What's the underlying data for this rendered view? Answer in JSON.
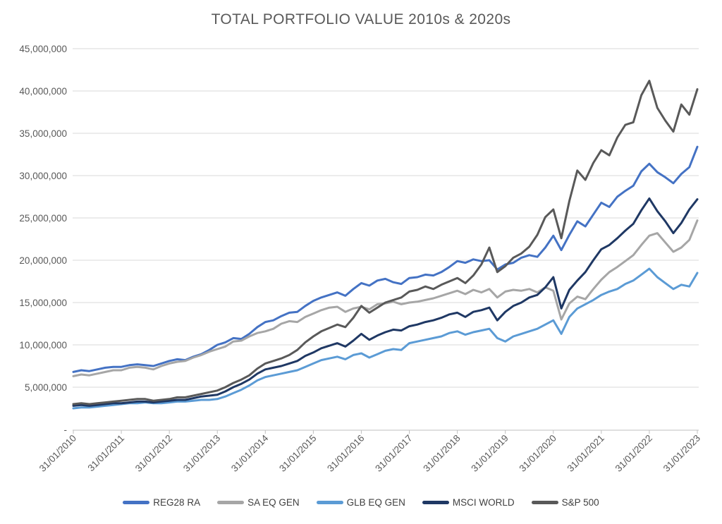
{
  "chart_data": {
    "type": "line",
    "title": "TOTAL PORTFOLIO VALUE 2010s & 2020s",
    "values_unit": "millions",
    "unit_multiplier": 1000000,
    "x_sampling": "6 points per year (bimonthly), Jan 2010 through Jan 2023",
    "x_tick_labels": [
      "31/01/2010",
      "31/01/2011",
      "31/01/2012",
      "31/01/2013",
      "31/01/2014",
      "31/01/2015",
      "31/01/2016",
      "31/01/2017",
      "31/01/2018",
      "31/01/2019",
      "31/01/2020",
      "31/01/2021",
      "31/01/2022",
      "31/01/2023"
    ],
    "y_ticks": [
      0,
      5,
      10,
      15,
      20,
      25,
      30,
      35,
      40,
      45
    ],
    "y_tick_labels": [
      "-",
      "5,000,000",
      "10,000,000",
      "15,000,000",
      "20,000,000",
      "25,000,000",
      "30,000,000",
      "35,000,000",
      "40,000,000",
      "45,000,000"
    ],
    "ylim": [
      0,
      45
    ],
    "grid": "horizontal",
    "legend_position": "bottom",
    "colors": {
      "grid_line": "#d9d9d9",
      "axis_line": "#bfbfbf",
      "axis_text": "#595959",
      "legend_text": "#404040"
    },
    "series": [
      {
        "name": "REG28 RA",
        "color": "#4472c4",
        "values": [
          6.8,
          7.0,
          6.9,
          7.1,
          7.3,
          7.4,
          7.4,
          7.6,
          7.7,
          7.6,
          7.5,
          7.8,
          8.1,
          8.3,
          8.2,
          8.6,
          8.9,
          9.4,
          10.0,
          10.3,
          10.8,
          10.7,
          11.3,
          12.1,
          12.7,
          12.9,
          13.4,
          13.8,
          13.9,
          14.6,
          15.2,
          15.6,
          15.9,
          16.2,
          15.8,
          16.6,
          17.3,
          17.0,
          17.6,
          17.8,
          17.4,
          17.2,
          17.9,
          18.0,
          18.3,
          18.2,
          18.6,
          19.2,
          19.9,
          19.7,
          20.1,
          19.9,
          20.0,
          18.9,
          19.5,
          19.7,
          20.3,
          20.6,
          20.4,
          21.5,
          22.9,
          21.2,
          23.0,
          24.6,
          24.0,
          25.4,
          26.8,
          26.3,
          27.5,
          28.2,
          28.8,
          30.5,
          31.4,
          30.4,
          29.8,
          29.1,
          30.2,
          31.0,
          33.4
        ]
      },
      {
        "name": "SA EQ GEN",
        "color": "#a6a6a6",
        "values": [
          6.3,
          6.5,
          6.4,
          6.6,
          6.8,
          7.0,
          7.0,
          7.3,
          7.4,
          7.3,
          7.1,
          7.5,
          7.8,
          8.0,
          8.1,
          8.5,
          8.8,
          9.2,
          9.5,
          9.8,
          10.4,
          10.5,
          11.0,
          11.4,
          11.6,
          11.9,
          12.5,
          12.8,
          12.7,
          13.3,
          13.7,
          14.1,
          14.4,
          14.5,
          13.9,
          14.3,
          14.5,
          14.2,
          14.8,
          14.9,
          15.1,
          14.8,
          15.0,
          15.1,
          15.3,
          15.5,
          15.8,
          16.1,
          16.4,
          16.0,
          16.5,
          16.2,
          16.6,
          15.6,
          16.3,
          16.5,
          16.4,
          16.6,
          16.2,
          16.8,
          16.4,
          13.0,
          14.9,
          15.7,
          15.4,
          16.6,
          17.7,
          18.6,
          19.2,
          19.9,
          20.6,
          21.8,
          22.9,
          23.2,
          22.1,
          21.0,
          21.5,
          22.4,
          24.7
        ]
      },
      {
        "name": "GLB EQ GEN",
        "color": "#5b9bd5",
        "values": [
          2.5,
          2.6,
          2.6,
          2.7,
          2.8,
          2.9,
          3.0,
          3.1,
          3.1,
          3.2,
          3.1,
          3.1,
          3.2,
          3.3,
          3.3,
          3.4,
          3.5,
          3.5,
          3.6,
          3.9,
          4.3,
          4.7,
          5.2,
          5.8,
          6.2,
          6.4,
          6.6,
          6.8,
          7.0,
          7.4,
          7.8,
          8.2,
          8.4,
          8.6,
          8.3,
          8.8,
          9.0,
          8.5,
          8.9,
          9.3,
          9.5,
          9.4,
          10.2,
          10.4,
          10.6,
          10.8,
          11.0,
          11.4,
          11.6,
          11.2,
          11.5,
          11.7,
          11.9,
          10.8,
          10.4,
          11.0,
          11.3,
          11.6,
          11.9,
          12.4,
          12.9,
          11.3,
          13.3,
          14.3,
          14.8,
          15.3,
          15.9,
          16.3,
          16.6,
          17.2,
          17.6,
          18.3,
          19.0,
          18.0,
          17.3,
          16.6,
          17.1,
          16.9,
          18.5
        ]
      },
      {
        "name": "MSCI WORLD",
        "color": "#1f3864",
        "values": [
          2.8,
          2.9,
          2.8,
          2.9,
          3.0,
          3.1,
          3.1,
          3.2,
          3.3,
          3.3,
          3.2,
          3.3,
          3.4,
          3.5,
          3.5,
          3.7,
          3.9,
          4.0,
          4.1,
          4.5,
          5.0,
          5.4,
          5.9,
          6.6,
          7.1,
          7.3,
          7.5,
          7.8,
          8.1,
          8.7,
          9.1,
          9.6,
          9.9,
          10.2,
          9.8,
          10.5,
          11.3,
          10.6,
          11.1,
          11.5,
          11.8,
          11.7,
          12.2,
          12.4,
          12.7,
          12.9,
          13.2,
          13.6,
          13.8,
          13.3,
          13.9,
          14.1,
          14.4,
          12.9,
          13.9,
          14.6,
          15.0,
          15.6,
          15.9,
          16.8,
          18.0,
          14.3,
          16.5,
          17.6,
          18.6,
          20.0,
          21.3,
          21.8,
          22.6,
          23.5,
          24.3,
          25.9,
          27.3,
          25.8,
          24.6,
          23.2,
          24.4,
          26.0,
          27.2
        ]
      },
      {
        "name": "S&P 500",
        "color": "#595959",
        "values": [
          3.0,
          3.1,
          3.0,
          3.1,
          3.2,
          3.3,
          3.4,
          3.5,
          3.6,
          3.6,
          3.4,
          3.5,
          3.6,
          3.8,
          3.8,
          4.0,
          4.2,
          4.4,
          4.6,
          5.0,
          5.5,
          5.9,
          6.4,
          7.2,
          7.8,
          8.1,
          8.4,
          8.8,
          9.4,
          10.3,
          11.0,
          11.6,
          12.0,
          12.4,
          12.1,
          13.2,
          14.6,
          13.8,
          14.4,
          15.0,
          15.3,
          15.6,
          16.3,
          16.5,
          16.9,
          16.6,
          17.1,
          17.5,
          17.9,
          17.3,
          18.2,
          19.5,
          21.5,
          18.6,
          19.3,
          20.3,
          20.8,
          21.6,
          23.0,
          25.1,
          26.0,
          22.6,
          27.0,
          30.6,
          29.5,
          31.5,
          33.0,
          32.4,
          34.5,
          36.0,
          36.3,
          39.5,
          41.2,
          38.0,
          36.5,
          35.2,
          38.4,
          37.2,
          40.2
        ]
      }
    ]
  }
}
